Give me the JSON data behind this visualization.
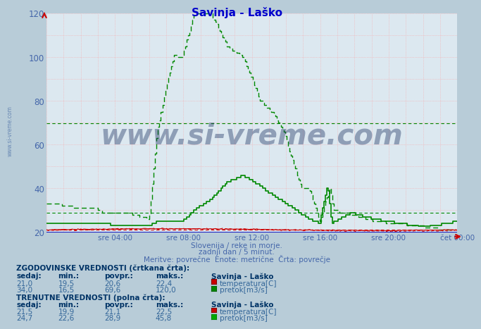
{
  "title": "Savinja - Laško",
  "title_color": "#0000cc",
  "fig_bg_color": "#b8ccd8",
  "plot_bg_color": "#dce8f0",
  "y_min": 20,
  "y_max": 120,
  "x_tick_labels": [
    "sre 04:00",
    "sre 08:00",
    "sre 12:00",
    "sre 16:00",
    "sre 20:00",
    "čet 00:00"
  ],
  "x_tick_positions_frac": [
    0.1667,
    0.3333,
    0.5,
    0.6667,
    0.8333,
    1.0
  ],
  "hline_green1": 69.6,
  "hline_green2": 28.9,
  "hline_red": 21.0,
  "watermark_text": "www.si-vreme.com",
  "watermark_color": "#1a3060",
  "watermark_alpha": 0.4,
  "red_color": "#cc0000",
  "green_color": "#008800",
  "blue_line": "#0000bb",
  "tick_color": "#4466aa",
  "subtitle1": "Slovenija / reke in morje.",
  "subtitle2": "zadnji dan / 5 minut.",
  "subtitle3": "Meritve: povrečne  Enote: metrične  Črta: povrečje",
  "hist_label": "ZGODOVINSKE VREDNOSTI (črtkana črta):",
  "curr_label": "TRENUTNE VREDNOSTI (polna črta):",
  "col_headers": [
    "sedaj:",
    "min.:",
    "povpr.:",
    "maks.:",
    "Savinja - Laško"
  ],
  "hist_temp": [
    "21,0",
    "19,5",
    "20,6",
    "22,4"
  ],
  "hist_flow": [
    "34,0",
    "16,5",
    "69,6",
    "120,0"
  ],
  "curr_temp": [
    "21,5",
    "19,9",
    "21,1",
    "22,5"
  ],
  "curr_flow": [
    "24,7",
    "22,6",
    "28,9",
    "45,8"
  ],
  "temp_label": "temperatura[C]",
  "flow_label": "pretok[m3/s]",
  "grid_color": "#ff9999",
  "grid_minor_color": "#ffcccc"
}
